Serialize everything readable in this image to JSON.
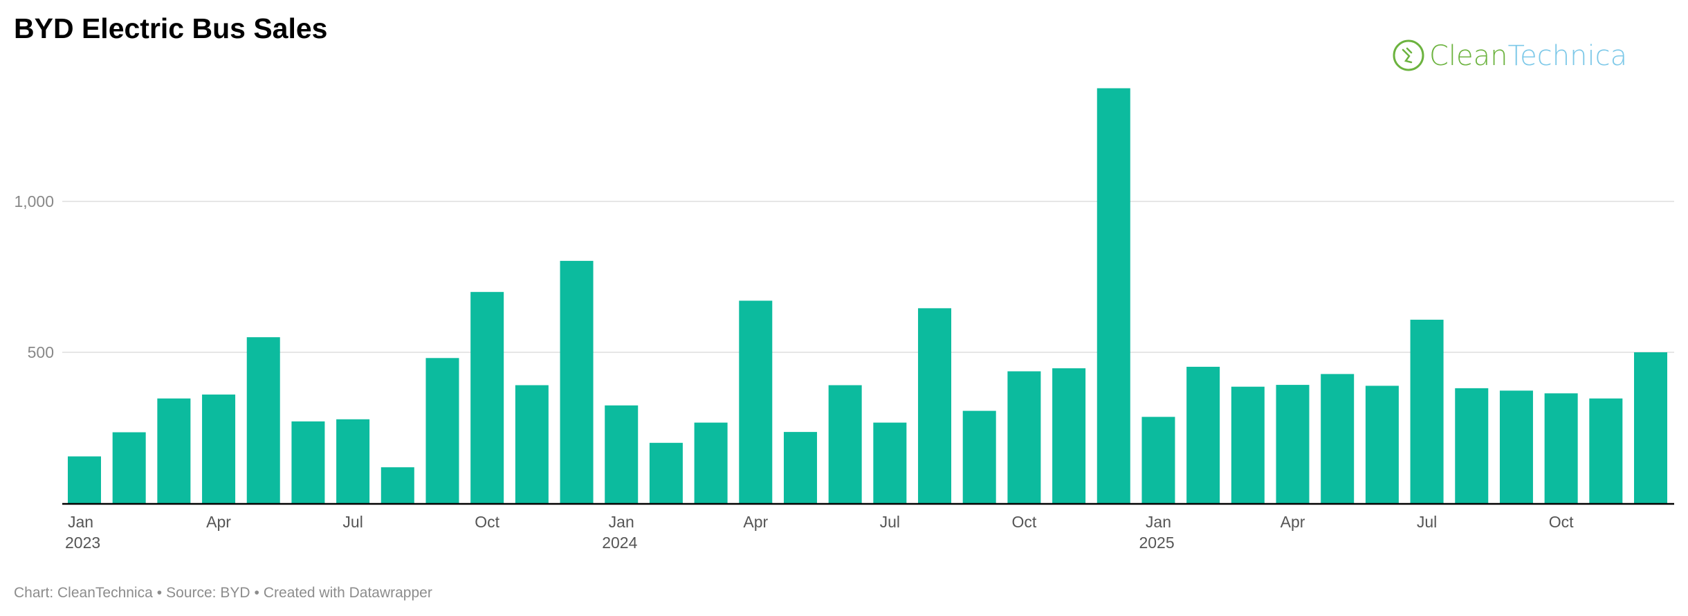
{
  "title": "BYD Electric Bus Sales",
  "brand": {
    "name_part1": "Clean",
    "name_part2": "Technica",
    "color1": "#6cb33f",
    "color2": "#7cc8e8"
  },
  "footer": {
    "chart_credit": "Chart: CleanTechnica",
    "source": "Source: BYD",
    "created": "Created with Datawrapper",
    "separator": "•"
  },
  "colors": {
    "bar": "#0cbb9e",
    "grid": "#dddddd",
    "axis": "#000000"
  },
  "chart_data": {
    "type": "bar",
    "title": "BYD Electric Bus Sales",
    "xlabel": "",
    "ylabel": "",
    "ylim": [
      0,
      1400
    ],
    "yticks": [
      {
        "value": 500,
        "label": "500"
      },
      {
        "value": 1000,
        "label": "1,000"
      }
    ],
    "grid": true,
    "categories": [
      "2023-01",
      "2023-02",
      "2023-03",
      "2023-04",
      "2023-05",
      "2023-06",
      "2023-07",
      "2023-08",
      "2023-09",
      "2023-10",
      "2023-11",
      "2023-12",
      "2024-01",
      "2024-02",
      "2024-03",
      "2024-04",
      "2024-05",
      "2024-06",
      "2024-07",
      "2024-08",
      "2024-09",
      "2024-10",
      "2024-11",
      "2024-12",
      "2025-01",
      "2025-02",
      "2025-03",
      "2025-04",
      "2025-05",
      "2025-06",
      "2025-07",
      "2025-08",
      "2025-09",
      "2025-10",
      "2025-11",
      "2025-12"
    ],
    "values": [
      155,
      235,
      347,
      360,
      550,
      271,
      278,
      119,
      481,
      700,
      391,
      803,
      324,
      200,
      267,
      671,
      236,
      391,
      267,
      646,
      306,
      437,
      447,
      1375,
      286,
      452,
      386,
      392,
      428,
      389,
      608,
      381,
      373,
      364,
      347,
      500
    ],
    "xtick_labels": [
      {
        "index": 0,
        "line1": "Jan",
        "line2": "2023"
      },
      {
        "index": 3,
        "line1": "Apr",
        "line2": ""
      },
      {
        "index": 6,
        "line1": "Jul",
        "line2": ""
      },
      {
        "index": 9,
        "line1": "Oct",
        "line2": ""
      },
      {
        "index": 12,
        "line1": "Jan",
        "line2": "2024"
      },
      {
        "index": 15,
        "line1": "Apr",
        "line2": ""
      },
      {
        "index": 18,
        "line1": "Jul",
        "line2": ""
      },
      {
        "index": 21,
        "line1": "Oct",
        "line2": ""
      },
      {
        "index": 24,
        "line1": "Jan",
        "line2": "2025"
      },
      {
        "index": 27,
        "line1": "Apr",
        "line2": ""
      },
      {
        "index": 30,
        "line1": "Jul",
        "line2": ""
      },
      {
        "index": 33,
        "line1": "Oct",
        "line2": ""
      }
    ]
  }
}
